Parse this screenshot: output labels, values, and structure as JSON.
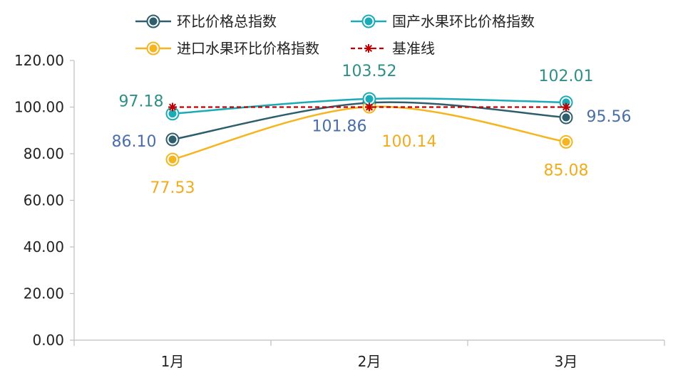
{
  "chart_data": {
    "type": "line",
    "categories": [
      "1月",
      "2月",
      "3月"
    ],
    "ylim": [
      0,
      120
    ],
    "yticks": [
      "0.00",
      "20.00",
      "40.00",
      "60.00",
      "80.00",
      "100.00",
      "120.00"
    ],
    "grid": false,
    "legend_position": "top",
    "series": [
      {
        "name": "环比价格总指数",
        "values": [
          86.1,
          101.86,
          95.56
        ],
        "labels": [
          "86.10",
          "101.86",
          "95.56"
        ],
        "color": "#2e5e6b",
        "label_color": "#4a6ea8",
        "marker": "circle",
        "dashed": false
      },
      {
        "name": "国产水果环比价格指数",
        "values": [
          97.18,
          103.52,
          102.01
        ],
        "labels": [
          "97.18",
          "103.52",
          "102.01"
        ],
        "color": "#1aabb8",
        "label_color": "#2f8f86",
        "marker": "circle",
        "dashed": false
      },
      {
        "name": "进口水果环比价格指数",
        "values": [
          77.53,
          100.14,
          85.08
        ],
        "labels": [
          "77.53",
          "100.14",
          "85.08"
        ],
        "color": "#f5b51f",
        "label_color": "#f0ac1d",
        "marker": "circle",
        "dashed": false
      },
      {
        "name": "基准线",
        "values": [
          100,
          100,
          100
        ],
        "labels": [],
        "color": "#c00000",
        "label_color": "#c00000",
        "marker": "star",
        "dashed": true
      }
    ]
  }
}
